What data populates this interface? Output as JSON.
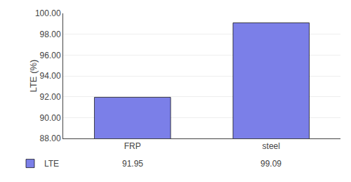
{
  "chart_data": {
    "type": "bar",
    "categories": [
      "FRP",
      "steel"
    ],
    "series": [
      {
        "name": "LTE",
        "color": "#7b7fe8",
        "values": [
          91.95,
          99.09
        ]
      }
    ],
    "ylabel": "LTE (%)",
    "ylim": [
      88.0,
      100.0
    ],
    "yticks": [
      {
        "value": 88.0,
        "label": "88.00"
      },
      {
        "value": 90.0,
        "label": "90.00"
      },
      {
        "value": 92.0,
        "label": "92.00"
      },
      {
        "value": 94.0,
        "label": "94.00"
      },
      {
        "value": 96.0,
        "label": "96.00"
      },
      {
        "value": 98.0,
        "label": "98.00"
      },
      {
        "value": 100.0,
        "label": "100.00"
      }
    ],
    "grid": true,
    "legend": "lower left",
    "data_labels": true
  }
}
